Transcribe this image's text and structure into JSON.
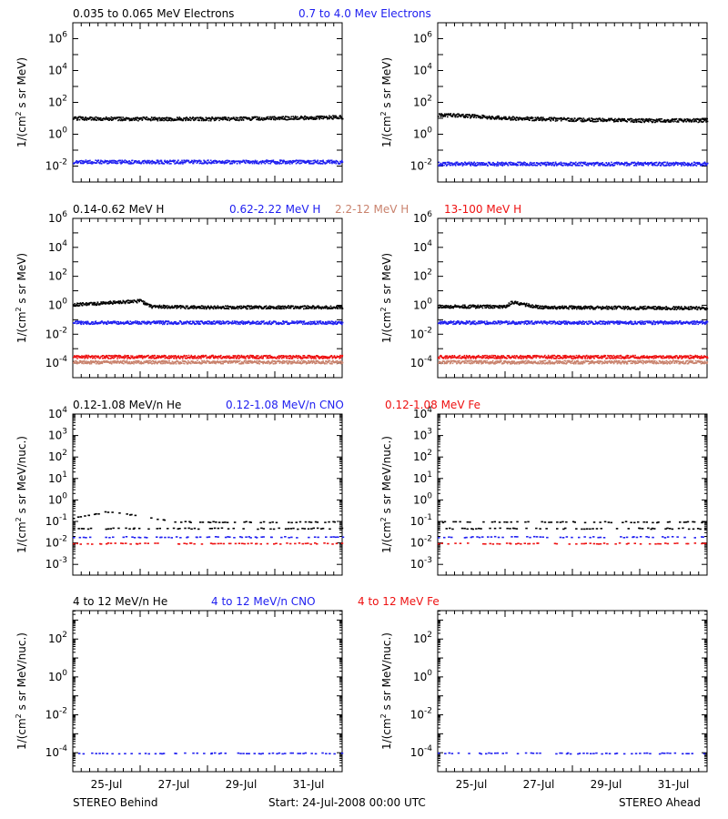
{
  "footer": {
    "left": "STEREO Behind",
    "center": "Start: 24-Jul-2008 00:00 UTC",
    "right": "STEREO Ahead"
  },
  "colors": {
    "black": "#000000",
    "blue": "#1e1ef0",
    "red": "#ee1111",
    "salmon": "#c9826d"
  },
  "chart_data": [
    {
      "type": "scatter",
      "row": "electrons",
      "legend": [
        {
          "text": "0.035 to 0.065 MeV Electrons",
          "color": "#000000"
        },
        {
          "text": "0.7 to 4.0 Mev Electrons",
          "color": "#1e1ef0"
        }
      ],
      "ylabel_text": "1/(cm",
      "ylabel_sup": "2",
      "ylabel_tail": " s sr MeV)",
      "y_log_range": [
        -3,
        7
      ],
      "y_ticks": [
        {
          "base": "10",
          "exp": "-2"
        },
        {
          "base": "10",
          "exp": "0"
        },
        {
          "base": "10",
          "exp": "2"
        },
        {
          "base": "10",
          "exp": "4"
        },
        {
          "base": "10",
          "exp": "6"
        }
      ],
      "y_tick_exps": [
        -2,
        0,
        2,
        4,
        6
      ],
      "x_range_days": [
        "2008-07-24",
        "2008-08-01"
      ],
      "series": [
        {
          "color": "#000000",
          "behind": [
            [
              0,
              11
            ],
            [
              2,
              10
            ],
            [
              4,
              10
            ],
            [
              6,
              11
            ],
            [
              8,
              13
            ]
          ],
          "ahead": [
            [
              0,
              18
            ],
            [
              1,
              15
            ],
            [
              2,
              11
            ],
            [
              4,
              9
            ],
            [
              6,
              8
            ],
            [
              8,
              8
            ]
          ]
        },
        {
          "color": "#1e1ef0",
          "behind": [
            [
              0,
              0.02
            ],
            [
              8,
              0.02
            ]
          ],
          "ahead": [
            [
              0,
              0.015
            ],
            [
              8,
              0.015
            ]
          ]
        }
      ]
    },
    {
      "type": "scatter",
      "row": "protons",
      "legend": [
        {
          "text": "0.14-0.62 MeV H",
          "color": "#000000"
        },
        {
          "text": "0.62-2.22 MeV H",
          "color": "#1e1ef0"
        },
        {
          "text": "2.2-12 MeV H",
          "color": "#c9826d"
        },
        {
          "text": "13-100 MeV H",
          "color": "#ee1111"
        }
      ],
      "ylabel_text": "1/(cm",
      "ylabel_sup": "2",
      "ylabel_tail": " s sr MeV)",
      "y_log_range": [
        -5,
        6
      ],
      "y_ticks": [
        {
          "base": "10",
          "exp": "-4"
        },
        {
          "base": "10",
          "exp": "-2"
        },
        {
          "base": "10",
          "exp": "0"
        },
        {
          "base": "10",
          "exp": "2"
        },
        {
          "base": "10",
          "exp": "4"
        },
        {
          "base": "10",
          "exp": "6"
        }
      ],
      "y_tick_exps": [
        -4,
        -2,
        0,
        2,
        4,
        6
      ],
      "x_range_days": [
        "2008-07-24",
        "2008-08-01"
      ],
      "series": [
        {
          "color": "#000000",
          "behind": [
            [
              0,
              1.2
            ],
            [
              1,
              1.6
            ],
            [
              2,
              2.2
            ],
            [
              2.3,
              0.9
            ],
            [
              4,
              0.8
            ],
            [
              8,
              0.8
            ]
          ],
          "ahead": [
            [
              0,
              0.9
            ],
            [
              2,
              0.9
            ],
            [
              2.2,
              1.8
            ],
            [
              3,
              0.8
            ],
            [
              8,
              0.7
            ]
          ]
        },
        {
          "color": "#1e1ef0",
          "behind": [
            [
              0,
              0.07
            ],
            [
              8,
              0.07
            ]
          ],
          "ahead": [
            [
              0,
              0.07
            ],
            [
              8,
              0.07
            ]
          ]
        },
        {
          "color": "#ee1111",
          "behind": [
            [
              0,
              0.0003
            ],
            [
              8,
              0.0003
            ]
          ],
          "ahead": [
            [
              0,
              0.0003
            ],
            [
              8,
              0.0003
            ]
          ]
        },
        {
          "color": "#c9826d",
          "behind": [
            [
              0,
              0.00013
            ],
            [
              8,
              0.00013
            ]
          ],
          "ahead": [
            [
              0,
              0.00013
            ],
            [
              8,
              0.00013
            ]
          ]
        }
      ]
    },
    {
      "type": "scatter",
      "row": "heavy-low",
      "legend": [
        {
          "text": "0.12-1.08 MeV/n He",
          "color": "#000000"
        },
        {
          "text": "0.12-1.08 MeV/n CNO",
          "color": "#1e1ef0"
        },
        {
          "text": "0.12-1.08 MeV Fe",
          "color": "#ee1111"
        }
      ],
      "ylabel_text": "1/(cm",
      "ylabel_sup": "2",
      "ylabel_tail": " s sr MeV/nuc.)",
      "y_log_range": [
        -3.5,
        4
      ],
      "y_ticks": [
        {
          "base": "10",
          "exp": "-3"
        },
        {
          "base": "10",
          "exp": "-2"
        },
        {
          "base": "10",
          "exp": "-1"
        },
        {
          "base": "10",
          "exp": "0"
        },
        {
          "base": "10",
          "exp": "1"
        },
        {
          "base": "10",
          "exp": "2"
        },
        {
          "base": "10",
          "exp": "3"
        },
        {
          "base": "10",
          "exp": "4"
        }
      ],
      "y_tick_exps": [
        -3,
        -2,
        -1,
        0,
        1,
        2,
        3,
        4
      ],
      "x_range_days": [
        "2008-07-24",
        "2008-08-01"
      ],
      "series": [
        {
          "color": "#000000",
          "behind": [
            [
              0,
              0.15
            ],
            [
              1,
              0.3
            ],
            [
              2,
              0.2
            ],
            [
              3,
              0.1
            ],
            [
              8,
              0.1
            ]
          ],
          "ahead": [
            [
              0,
              0.1
            ],
            [
              8,
              0.1
            ]
          ]
        },
        {
          "color": "#000000",
          "behind": [
            [
              0,
              0.05
            ],
            [
              8,
              0.05
            ]
          ],
          "ahead": [
            [
              0,
              0.05
            ],
            [
              8,
              0.05
            ]
          ]
        },
        {
          "color": "#1e1ef0",
          "behind": [
            [
              0,
              0.02
            ],
            [
              8,
              0.02
            ]
          ],
          "ahead": [
            [
              0,
              0.02
            ],
            [
              8,
              0.02
            ]
          ]
        },
        {
          "color": "#ee1111",
          "behind": [
            [
              0,
              0.01
            ],
            [
              8,
              0.01
            ]
          ],
          "ahead": [
            [
              0,
              0.01
            ],
            [
              8,
              0.01
            ]
          ]
        }
      ]
    },
    {
      "type": "scatter",
      "row": "heavy-high",
      "legend": [
        {
          "text": "4 to 12 MeV/n He",
          "color": "#000000"
        },
        {
          "text": "4 to 12 MeV/n CNO",
          "color": "#1e1ef0"
        },
        {
          "text": "4 to 12 MeV Fe",
          "color": "#ee1111"
        }
      ],
      "ylabel_text": "1/(cm",
      "ylabel_sup": "2",
      "ylabel_tail": " s sr MeV/nuc.)",
      "y_log_range": [
        -5,
        3.5
      ],
      "y_ticks": [
        {
          "base": "10",
          "exp": "-4"
        },
        {
          "base": "10",
          "exp": "-2"
        },
        {
          "base": "10",
          "exp": "0"
        },
        {
          "base": "10",
          "exp": "2"
        }
      ],
      "y_tick_exps": [
        -4,
        -2,
        0,
        2
      ],
      "x_range_days": [
        "2008-07-24",
        "2008-08-01"
      ],
      "series": [
        {
          "color": "#1e1ef0",
          "behind": [
            [
              0,
              0.0001
            ],
            [
              8,
              0.0001
            ]
          ],
          "ahead": [
            [
              0,
              0.0001
            ],
            [
              8,
              0.0001
            ]
          ]
        }
      ]
    }
  ],
  "x_axis": {
    "tick_labels": [
      "25-Jul",
      "27-Jul",
      "29-Jul",
      "31-Jul"
    ],
    "tick_label_days": [
      1,
      3,
      5,
      7
    ]
  }
}
